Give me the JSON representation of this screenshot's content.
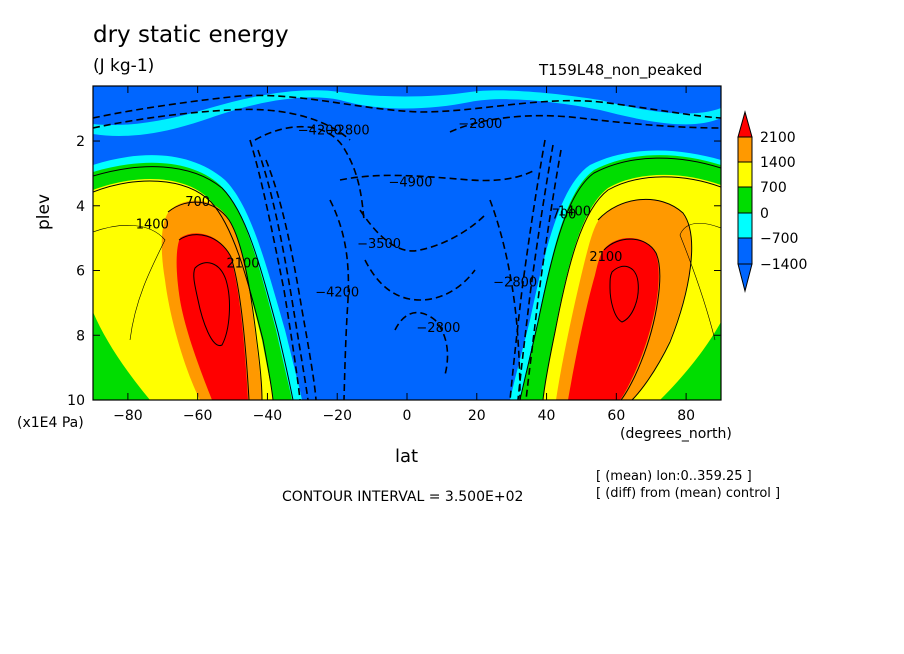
{
  "chart_data": {
    "type": "contour",
    "title": "dry static energy",
    "units": "(J kg-1)",
    "run_label": "T159L48_non_peaked",
    "xlabel": "lat",
    "x_units": "(degrees_north)",
    "ylabel": "plev",
    "y_multiplier": "(x1E4 Pa)",
    "xlim": [
      -90,
      90
    ],
    "ylim": [
      10,
      0.3
    ],
    "x_ticks": [
      -80,
      -60,
      -40,
      -20,
      0,
      20,
      40,
      60,
      80
    ],
    "x_tick_labels": [
      "−80",
      "−60",
      "−40",
      "−20",
      "0",
      "20",
      "40",
      "60",
      "80"
    ],
    "y_ticks": [
      2,
      4,
      6,
      8,
      10
    ],
    "y_tick_labels": [
      "2",
      "4",
      "6",
      "8",
      "10"
    ],
    "contour_interval": "CONTOUR INTERVAL = 3.500E+02",
    "notes": [
      "[ (mean) lon:0..359.25 ]",
      "[ (diff) from (mean) control ]"
    ],
    "colorbar": {
      "levels": [
        -1400,
        -700,
        0,
        700,
        1400,
        2100
      ],
      "labels": [
        "2100",
        "1400",
        "700",
        "0",
        "−700",
        "−1400"
      ],
      "colors": [
        "#ff0000",
        "#ff9900",
        "#ffff00",
        "#00dd00",
        "#00ffff",
        "#0066ff"
      ],
      "extend": "both"
    },
    "contour_labels": [
      {
        "lat": -47,
        "p": 5.9,
        "text": "2100"
      },
      {
        "lat": 57,
        "p": 5.7,
        "text": "2100"
      },
      {
        "lat": -73,
        "p": 4.7,
        "text": "1400"
      },
      {
        "lat": 48,
        "p": 4.3,
        "text": "1400"
      },
      {
        "lat": -60,
        "p": 4.0,
        "text": "700"
      },
      {
        "lat": 45,
        "p": 4.4,
        "text": "700"
      },
      {
        "lat": 1,
        "p": 3.4,
        "text": "−4900"
      },
      {
        "lat": -8,
        "p": 5.3,
        "text": "−3500"
      },
      {
        "lat": -20,
        "p": 6.8,
        "text": "−4200"
      },
      {
        "lat": 9,
        "p": 7.9,
        "text": "−2800"
      },
      {
        "lat": 21,
        "p": 1.6,
        "text": "−2800"
      },
      {
        "lat": -25,
        "p": 1.8,
        "text": "−4200"
      },
      {
        "lat": -17,
        "p": 1.8,
        "text": "−2800"
      },
      {
        "lat": 31,
        "p": 6.5,
        "text": "−2800"
      }
    ]
  }
}
